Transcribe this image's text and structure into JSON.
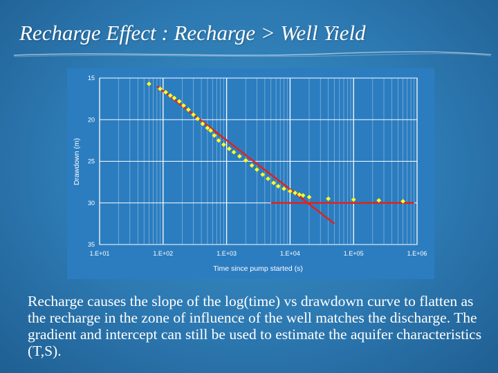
{
  "slide": {
    "title": "Recharge Effect : Recharge > Well Yield",
    "body": "Recharge causes the slope of the log(time) vs drawdown curve to flatten as the recharge in the zone of influence of the well matches the discharge. The gradient and intercept can still be used to estimate the aquifer characteristics (T,S)."
  },
  "colors": {
    "plot_background": "#2b7dc0",
    "marker": "#ffff33",
    "fit_line": "#e0231c",
    "axis_text": "#ffffff"
  },
  "chart_data": {
    "type": "scatter",
    "xlabel": "Time since pump started (s)",
    "ylabel": "Drawdown (m)",
    "x_scale": "log",
    "xlim": [
      10,
      1000000
    ],
    "ylim": [
      15,
      35
    ],
    "y_inverted": true,
    "x_ticks": [
      "1.E+01",
      "1.E+02",
      "1.E+03",
      "1.E+04",
      "1.E+05",
      "1.E+06"
    ],
    "y_ticks": [
      "15",
      "20",
      "25",
      "30",
      "35"
    ],
    "grid": true,
    "legend": "none",
    "points": [
      {
        "x": 60,
        "y": 15.7
      },
      {
        "x": 90,
        "y": 16.3
      },
      {
        "x": 110,
        "y": 16.7
      },
      {
        "x": 130,
        "y": 17.1
      },
      {
        "x": 150,
        "y": 17.4
      },
      {
        "x": 180,
        "y": 17.8
      },
      {
        "x": 210,
        "y": 18.3
      },
      {
        "x": 250,
        "y": 18.8
      },
      {
        "x": 300,
        "y": 19.4
      },
      {
        "x": 350,
        "y": 19.9
      },
      {
        "x": 420,
        "y": 20.5
      },
      {
        "x": 500,
        "y": 21.0
      },
      {
        "x": 560,
        "y": 21.3
      },
      {
        "x": 640,
        "y": 21.9
      },
      {
        "x": 750,
        "y": 22.5
      },
      {
        "x": 900,
        "y": 23.0
      },
      {
        "x": 1100,
        "y": 23.5
      },
      {
        "x": 1300,
        "y": 23.9
      },
      {
        "x": 1600,
        "y": 24.4
      },
      {
        "x": 2000,
        "y": 24.9
      },
      {
        "x": 2500,
        "y": 25.5
      },
      {
        "x": 3000,
        "y": 26.0
      },
      {
        "x": 3700,
        "y": 26.6
      },
      {
        "x": 4500,
        "y": 27.1
      },
      {
        "x": 5500,
        "y": 27.6
      },
      {
        "x": 6500,
        "y": 28.0
      },
      {
        "x": 8000,
        "y": 28.3
      },
      {
        "x": 10000,
        "y": 28.6
      },
      {
        "x": 12000,
        "y": 28.8
      },
      {
        "x": 14000,
        "y": 29.0
      },
      {
        "x": 16000,
        "y": 29.1
      },
      {
        "x": 20000,
        "y": 29.3
      },
      {
        "x": 40000,
        "y": 29.5
      },
      {
        "x": 100000,
        "y": 29.6
      },
      {
        "x": 250000,
        "y": 29.7
      },
      {
        "x": 600000,
        "y": 29.8
      }
    ],
    "fit_lines": [
      {
        "x": [
          80,
          50000
        ],
        "y": [
          16.0,
          32.5
        ]
      },
      {
        "x": 5000,
        "x_end": 900000,
        "y": [
          30.0,
          30.0
        ]
      }
    ]
  }
}
